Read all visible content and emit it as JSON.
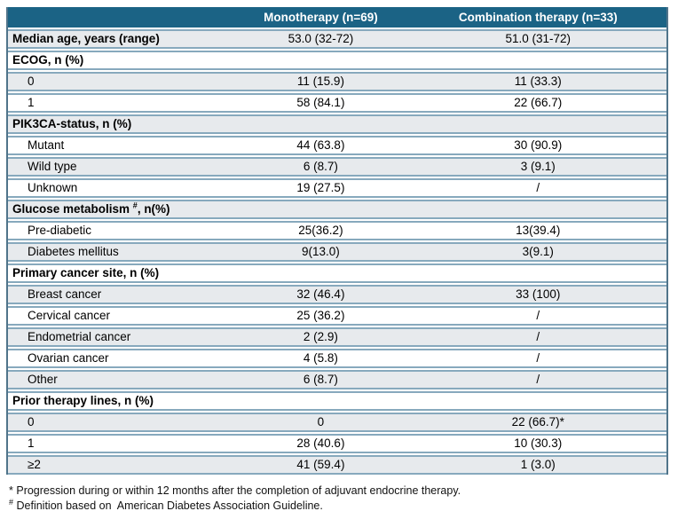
{
  "colors": {
    "header_bg": "#1b6385",
    "header_text": "#ffffff",
    "shaded_row_bg": "#e7eaed",
    "row_separator": "#87a9bd",
    "outer_border": "#50748a"
  },
  "table": {
    "columns": [
      "",
      "Monotherapy (n=69)",
      "Combination therapy (n=33)"
    ],
    "rows": [
      {
        "type": "param",
        "label": "Median age, years (range)",
        "mono": "53.0 (32-72)",
        "combo": "51.0 (31-72)"
      },
      {
        "type": "section",
        "label": "ECOG, n (%)"
      },
      {
        "type": "sub",
        "label": "0",
        "mono": "11 (15.9)",
        "combo": "11 (33.3)"
      },
      {
        "type": "sub",
        "label": "1",
        "mono": "58 (84.1)",
        "combo": "22 (66.7)"
      },
      {
        "type": "section",
        "label": "PIK3CA-status, n (%)"
      },
      {
        "type": "sub",
        "label": "Mutant",
        "mono": "44 (63.8)",
        "combo": "30 (90.9)"
      },
      {
        "type": "sub",
        "label": "Wild type",
        "mono": "6 (8.7)",
        "combo": "3 (9.1)"
      },
      {
        "type": "sub",
        "label": "Unknown",
        "mono": "19 (27.5)",
        "combo": "/"
      },
      {
        "type": "section",
        "label": "Glucose metabolism #, n(%)",
        "sup": "#"
      },
      {
        "type": "sub",
        "label": "Pre-diabetic",
        "mono": "25(36.2)",
        "combo": "13(39.4)"
      },
      {
        "type": "sub",
        "label": "Diabetes mellitus",
        "mono": "9(13.0)",
        "combo": "3(9.1)"
      },
      {
        "type": "section",
        "label": "Primary cancer site, n (%)"
      },
      {
        "type": "sub",
        "label": "Breast cancer",
        "mono": "32 (46.4)",
        "combo": "33 (100)"
      },
      {
        "type": "sub",
        "label": "Cervical cancer",
        "mono": "25 (36.2)",
        "combo": "/"
      },
      {
        "type": "sub",
        "label": "Endometrial cancer",
        "mono": "2 (2.9)",
        "combo": "/"
      },
      {
        "type": "sub",
        "label": "Ovarian cancer",
        "mono": "4 (5.8)",
        "combo": "/"
      },
      {
        "type": "sub",
        "label": "Other",
        "mono": "6 (8.7)",
        "combo": "/"
      },
      {
        "type": "section",
        "label": "Prior therapy lines, n (%)"
      },
      {
        "type": "sub",
        "label": "0",
        "mono": "0",
        "combo": "22 (66.7)*"
      },
      {
        "type": "sub",
        "label": "1",
        "mono": "28 (40.6)",
        "combo": "10 (30.3)"
      },
      {
        "type": "sub",
        "label": "≥2",
        "mono": "41 (59.4)",
        "combo": "1 (3.0)"
      }
    ]
  },
  "footnotes": [
    {
      "marker": "*",
      "sup": false,
      "text": "Progression during or within 12 months after the completion of adjuvant endocrine therapy."
    },
    {
      "marker": "#",
      "sup": true,
      "text": "Definition based on  American Diabetes Association Guideline."
    }
  ]
}
